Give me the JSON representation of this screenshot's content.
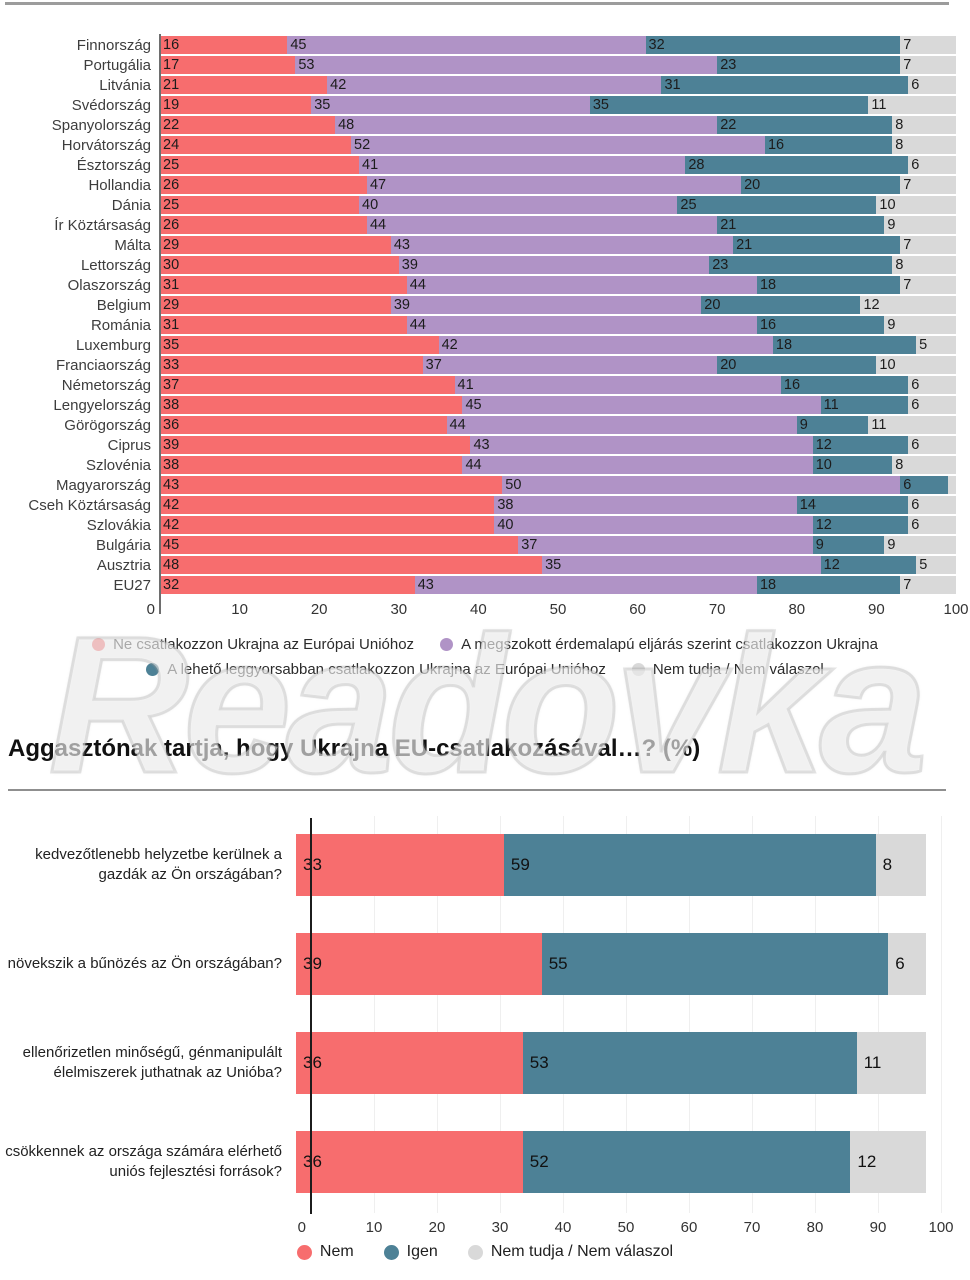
{
  "watermark": "Readovka",
  "colors": {
    "red": "#f76d6e",
    "purple": "#b093c6",
    "teal": "#4d8196",
    "gray": "#d9d9d9"
  },
  "chart_data": [
    {
      "type": "bar",
      "stacked": true,
      "orientation": "horizontal",
      "xlim": [
        0,
        100
      ],
      "xticks": [
        0,
        10,
        20,
        30,
        40,
        50,
        60,
        70,
        80,
        90,
        100
      ],
      "grid": false,
      "legend_position": "bottom",
      "categories": [
        "Finnország",
        "Portugália",
        "Litvánia",
        "Svédország",
        "Spanyolország",
        "Horvátország",
        "Észtország",
        "Hollandia",
        "Dánia",
        "Ír Köztársaság",
        "Málta",
        "Lettország",
        "Olaszország",
        "Belgium",
        "Románia",
        "Luxemburg",
        "Franciaország",
        "Németország",
        "Lengyelország",
        "Görögország",
        "Ciprus",
        "Szlovénia",
        "Magyarország",
        "Cseh Köztársaság",
        "Szlovákia",
        "Bulgária",
        "Ausztria",
        "EU27"
      ],
      "series": [
        {
          "name": "Ne csatlakozzon Ukrajna az Európai Unióhoz",
          "color": "#f76d6e",
          "values": [
            16,
            17,
            21,
            19,
            22,
            24,
            25,
            26,
            25,
            26,
            29,
            30,
            31,
            29,
            31,
            35,
            33,
            37,
            38,
            36,
            39,
            38,
            43,
            42,
            42,
            45,
            48,
            32
          ]
        },
        {
          "name": "A megszokott érdemalapú eljárás szerint csatlakozzon Ukrajna",
          "color": "#b093c6",
          "values": [
            45,
            53,
            42,
            35,
            48,
            52,
            41,
            47,
            40,
            44,
            43,
            39,
            44,
            39,
            44,
            42,
            37,
            41,
            45,
            44,
            43,
            44,
            50,
            38,
            40,
            37,
            35,
            43
          ]
        },
        {
          "name": "A lehető leggyorsabban csatlakozzon Ukrajna az Európai Unióhoz",
          "color": "#4d8196",
          "values": [
            32,
            23,
            31,
            35,
            22,
            16,
            28,
            20,
            25,
            21,
            21,
            23,
            18,
            20,
            16,
            18,
            20,
            16,
            11,
            9,
            12,
            10,
            6,
            14,
            12,
            9,
            12,
            18
          ]
        },
        {
          "name": "Nem tudja / Nem válaszol",
          "color": "#d9d9d9",
          "values": [
            7,
            7,
            6,
            11,
            8,
            8,
            6,
            7,
            10,
            9,
            7,
            8,
            7,
            12,
            9,
            5,
            10,
            6,
            6,
            11,
            6,
            8,
            1,
            6,
            6,
            9,
            5,
            7
          ]
        }
      ],
      "legend_lines": [
        [
          0,
          1
        ],
        [
          2,
          3
        ]
      ]
    },
    {
      "type": "bar",
      "stacked": true,
      "orientation": "horizontal",
      "title": "Aggasztónak tartja, hogy Ukrajna EU-csatlakozásával…? (%)",
      "xlim": [
        0,
        100
      ],
      "xticks": [
        0,
        10,
        20,
        30,
        40,
        50,
        60,
        70,
        80,
        90,
        100
      ],
      "grid": true,
      "legend_position": "bottom",
      "categories": [
        "kedvezőtlenebb helyzetbe kerülnek a gazdák az Ön országában?",
        "növekszik a bűnözés az Ön országában?",
        "ellenőrizetlen minőségű, génmanipulált élelmiszerek juthatnak az Unióba?",
        "csökkennek az országa számára elérhető uniós fejlesztési források?"
      ],
      "series": [
        {
          "name": "Nem",
          "color": "#f76d6e",
          "values": [
            33,
            39,
            36,
            36
          ]
        },
        {
          "name": "Igen",
          "color": "#4d8196",
          "values": [
            59,
            55,
            53,
            52
          ]
        },
        {
          "name": "Nem tudja / Nem válaszol",
          "color": "#d9d9d9",
          "values": [
            8,
            6,
            11,
            12
          ]
        }
      ],
      "legend_lines": [
        [
          0,
          1,
          2
        ]
      ]
    }
  ]
}
